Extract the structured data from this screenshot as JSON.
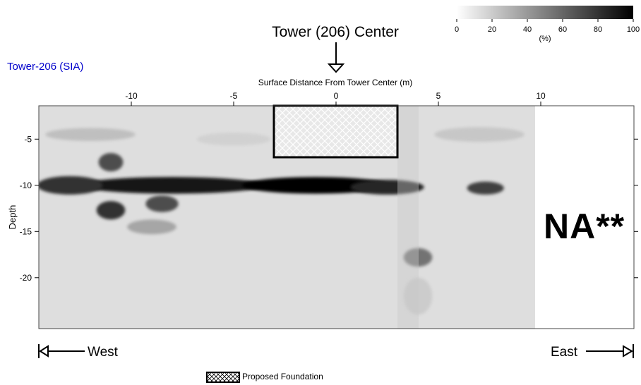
{
  "header": {
    "tower_center_label": "Tower (206) Center",
    "section_title": "Tower-206 (SIA)",
    "x_axis_title": "Surface Distance From Tower Center (m)",
    "y_axis_title": "Depth"
  },
  "colorbar": {
    "ticks": [
      "0",
      "20",
      "40",
      "60",
      "80",
      "100"
    ],
    "unit": "(%)"
  },
  "plot_annotations": {
    "na_label": "NA**",
    "west_label": "West",
    "east_label": "East",
    "legend_label": "Proposed Foundation"
  },
  "colors": {
    "title_blue": "#0000cc",
    "foundation_fill": "#e8e8e8",
    "na_region": "#ffffff"
  },
  "chart_data": {
    "type": "heatmap",
    "xlabel": "Surface Distance From Tower Center (m)",
    "ylabel": "Depth",
    "xlim": [
      -14.5,
      14.5
    ],
    "ylim": [
      -25,
      -2
    ],
    "x_ticks": [
      -10,
      -5,
      0,
      5,
      10
    ],
    "y_ticks": [
      -5,
      -10,
      -15,
      -20
    ],
    "colorscale": {
      "min": 0,
      "max": 100,
      "unit": "(%)",
      "low": "#ffffff",
      "high": "#000000"
    },
    "no_data_region": {
      "x": [
        9.8,
        14.5
      ],
      "label": "NA**"
    },
    "proposed_foundation": {
      "x": [
        -3,
        3
      ],
      "depth": [
        -2,
        -7
      ]
    },
    "tower_center_x": 0,
    "anomalies": [
      {
        "x": -8,
        "depth": -10,
        "value": 90,
        "sx": 4.5,
        "sy": 0.9
      },
      {
        "x": -1,
        "depth": -10,
        "value": 100,
        "sx": 3.6,
        "sy": 0.9
      },
      {
        "x": 2.5,
        "depth": -10.2,
        "value": 85,
        "sx": 1.8,
        "sy": 0.8
      },
      {
        "x": 7.3,
        "depth": -10.3,
        "value": 75,
        "sx": 0.9,
        "sy": 0.7
      },
      {
        "x": -13,
        "depth": -10,
        "value": 80,
        "sx": 1.6,
        "sy": 1.0
      },
      {
        "x": -11,
        "depth": -7.5,
        "value": 70,
        "sx": 0.6,
        "sy": 1.0
      },
      {
        "x": -11,
        "depth": -12.7,
        "value": 80,
        "sx": 0.7,
        "sy": 1.0
      },
      {
        "x": -8.5,
        "depth": -12,
        "value": 70,
        "sx": 0.8,
        "sy": 0.9
      },
      {
        "x": -9,
        "depth": -14.5,
        "value": 35,
        "sx": 1.2,
        "sy": 0.8
      },
      {
        "x": 4,
        "depth": -17.8,
        "value": 55,
        "sx": 0.7,
        "sy": 1.0
      },
      {
        "x": -12,
        "depth": -4.5,
        "value": 25,
        "sx": 2.2,
        "sy": 0.7
      },
      {
        "x": -5,
        "depth": -5,
        "value": 18,
        "sx": 1.8,
        "sy": 0.7
      },
      {
        "x": 7,
        "depth": -4.5,
        "value": 22,
        "sx": 2.2,
        "sy": 0.8
      },
      {
        "x": 4,
        "depth": -22,
        "value": 20,
        "sx": 0.7,
        "sy": 2.0
      }
    ]
  }
}
